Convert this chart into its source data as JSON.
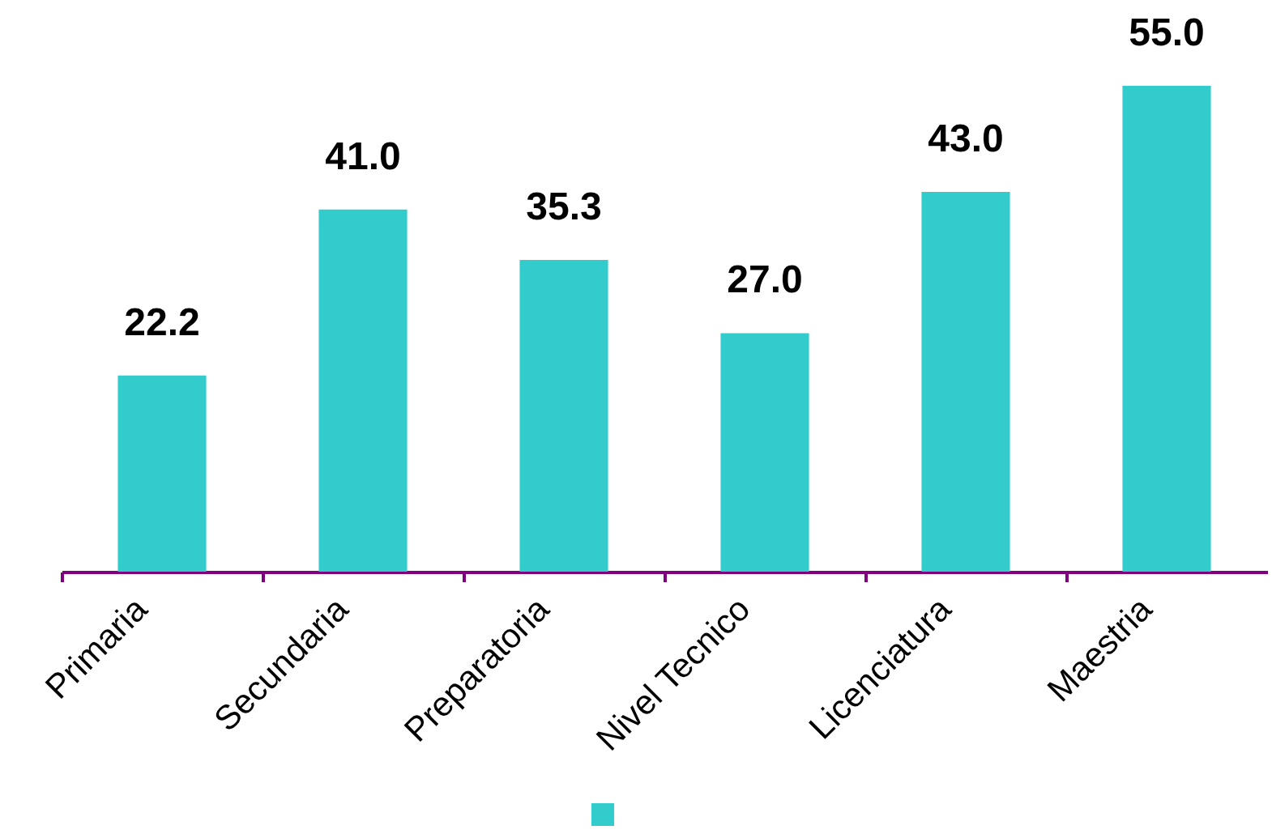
{
  "chart_data": {
    "type": "bar",
    "categories": [
      "Primaria",
      "Secundaria",
      "Preparatoria",
      "Nivel Tecnico",
      "Licenciatura",
      "Maestria"
    ],
    "values": [
      22.2,
      41.0,
      35.3,
      27.0,
      43.0,
      55.0
    ],
    "value_labels": [
      "22.2",
      "41.0",
      "35.3",
      "27.0",
      "43.0",
      "55.0"
    ],
    "color": "#33cccc"
  }
}
